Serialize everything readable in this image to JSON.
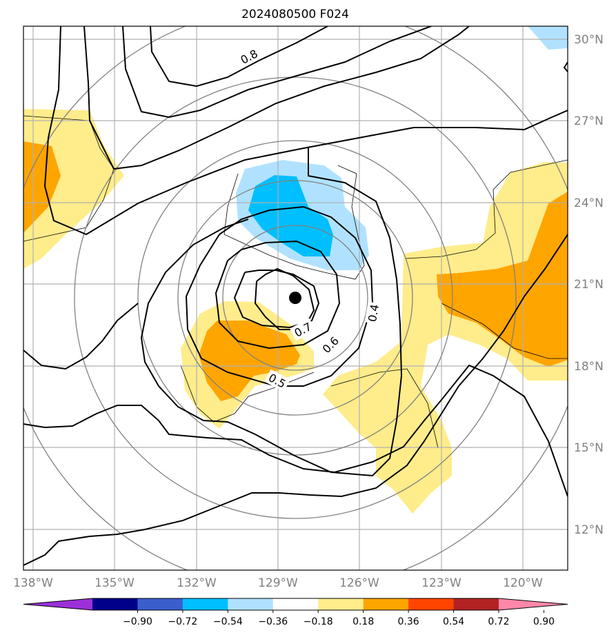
{
  "title": "2024080500 F024",
  "x_ticks": [
    "138°W",
    "135°W",
    "132°W",
    "129°W",
    "126°W",
    "123°W",
    "120°W"
  ],
  "y_ticks": [
    "30°N",
    "27°N",
    "24°N",
    "21°N",
    "18°N",
    "15°N",
    "12°N"
  ],
  "colorbar": {
    "ticks": [
      "−0.90",
      "−0.72",
      "−0.54",
      "−0.36",
      "−0.18",
      "0.18",
      "0.36",
      "0.54",
      "0.72",
      "0.90"
    ],
    "colors": [
      "#9b30d9",
      "#00008b",
      "#3a5fcd",
      "#00bfff",
      "#b0e2ff",
      "#ffffff",
      "#ffec8b",
      "#ffa500",
      "#ff4500",
      "#b22222",
      "#ff88aa"
    ]
  },
  "contour_labels": [
    "0.8",
    "0.7",
    "0.6",
    "0.5",
    "0.4"
  ],
  "shading_colors": {
    "light_blue": "#b0e2ff",
    "blue": "#00bfff",
    "light_yellow": "#ffec8b",
    "orange": "#ffa500"
  },
  "center_marker": {
    "lon": -128.3,
    "lat": 20.5
  }
}
